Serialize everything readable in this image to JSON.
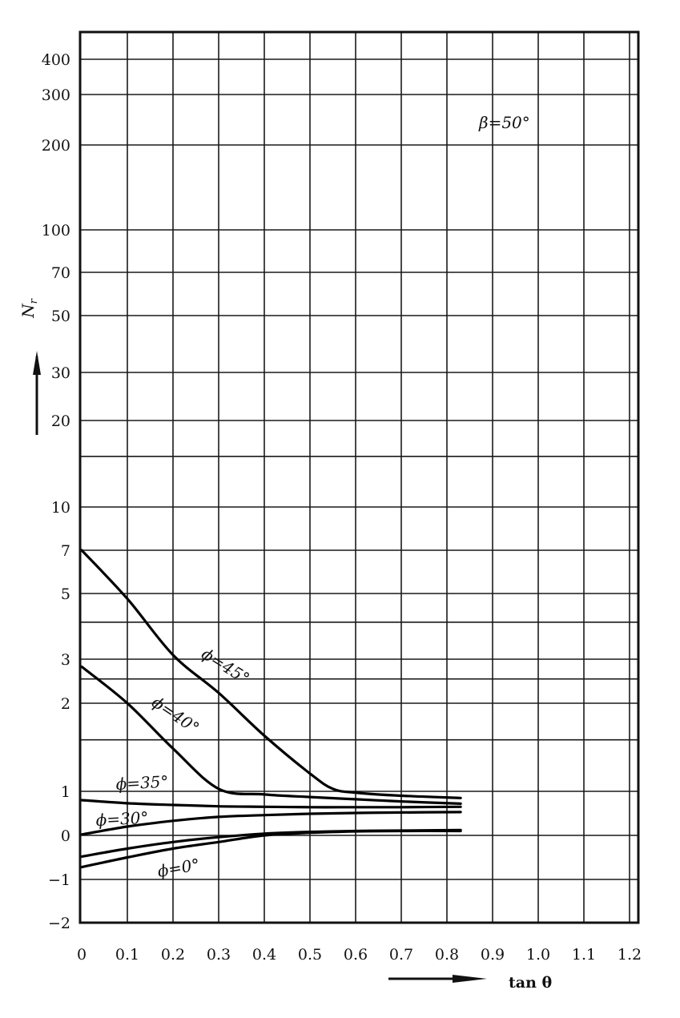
{
  "chart_data": {
    "type": "line",
    "title": "",
    "xlabel": "tan θ",
    "ylabel": "N_r",
    "ylabel_main": "N",
    "ylabel_sub": "r",
    "annotation": "β=50°",
    "xlim": [
      0,
      1.2
    ],
    "x_ticks": [
      "0",
      "0.1",
      "0.2",
      "0.3",
      "0.4",
      "0.5",
      "0.6",
      "0.7",
      "0.8",
      "0.9",
      "1.0",
      "1.1",
      "1.2"
    ],
    "y_ticks": [
      "400",
      "300",
      "200",
      "100",
      "70",
      "50",
      "30",
      "20",
      "10",
      "7",
      "5",
      "3",
      "2",
      "1",
      "0",
      "−1",
      "−2"
    ],
    "grid": true,
    "series": [
      {
        "name": "ϕ=45°",
        "label_line1": "ϕ=45°",
        "x": [
          0,
          0.1,
          0.2,
          0.3,
          0.4,
          0.5,
          0.55,
          0.6,
          0.7,
          0.83
        ],
        "y": [
          7,
          4.8,
          3.1,
          2.2,
          1.55,
          1.15,
          1.02,
          0.97,
          0.9,
          0.85
        ]
      },
      {
        "name": "ϕ=40°",
        "label_line1": "ϕ=40°",
        "x": [
          0,
          0.1,
          0.2,
          0.3,
          0.4,
          0.5,
          0.6,
          0.7,
          0.83
        ],
        "y": [
          2.8,
          2.0,
          1.4,
          1.02,
          0.93,
          0.87,
          0.82,
          0.77,
          0.72
        ]
      },
      {
        "name": "ϕ=35°",
        "label_line1": "ϕ=35°",
        "x": [
          0,
          0.1,
          0.2,
          0.3,
          0.4,
          0.5,
          0.6,
          0.7,
          0.83
        ],
        "y": [
          0.8,
          0.73,
          0.69,
          0.66,
          0.65,
          0.64,
          0.64,
          0.64,
          0.65
        ]
      },
      {
        "name": "ϕ=30°",
        "label_line1": "ϕ=30°",
        "x": [
          0,
          0.1,
          0.2,
          0.3,
          0.4,
          0.5,
          0.6,
          0.7,
          0.83
        ],
        "y": [
          0.02,
          0.2,
          0.33,
          0.42,
          0.46,
          0.49,
          0.51,
          0.52,
          0.53
        ]
      },
      {
        "name": "",
        "label_line1": "",
        "x": [
          0,
          0.1,
          0.2,
          0.3,
          0.4,
          0.5,
          0.6,
          0.7,
          0.83
        ],
        "y": [
          -0.48,
          -0.3,
          -0.15,
          -0.04,
          0.04,
          0.08,
          0.1,
          0.11,
          0.12
        ]
      },
      {
        "name": "ϕ=0°",
        "label_line1": "ϕ=0°",
        "x": [
          0,
          0.1,
          0.2,
          0.3,
          0.4,
          0.5,
          0.6,
          0.7,
          0.83
        ],
        "y": [
          -0.72,
          -0.5,
          -0.3,
          -0.15,
          0.0,
          0.06,
          0.09,
          0.1,
          0.1
        ]
      }
    ]
  }
}
